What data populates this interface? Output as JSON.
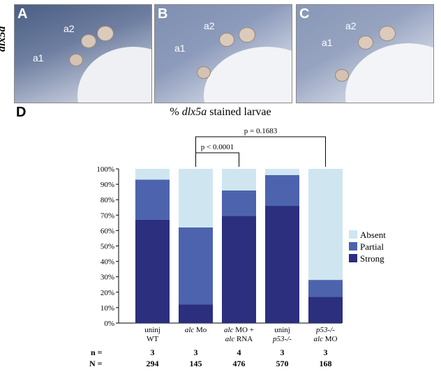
{
  "gene_label": "dlx5a",
  "panels": [
    {
      "letter": "A",
      "labels": [
        "a1",
        "a2"
      ]
    },
    {
      "letter": "B",
      "labels": [
        "a1",
        "a2"
      ]
    },
    {
      "letter": "C",
      "labels": [
        "a1",
        "a2"
      ]
    }
  ],
  "panel_d_letter": "D",
  "chart_title": {
    "pre": "% ",
    "gene": "dlx5a",
    "post": " stained larvae"
  },
  "chart_data": {
    "type": "bar",
    "stacked": true,
    "categories": [
      [
        "uninj",
        "WT"
      ],
      [
        "alc Mo"
      ],
      [
        "alc MO +",
        "alc RNA"
      ],
      [
        "uninj",
        "p53-/-"
      ],
      [
        "p53-/-",
        "alc MO"
      ]
    ],
    "series": [
      {
        "name": "Strong",
        "color": "#2b2f7e",
        "values": [
          67,
          12,
          69.5,
          76,
          17
        ]
      },
      {
        "name": "Partial",
        "color": "#4d63ad",
        "values": [
          26,
          50,
          16.5,
          20,
          11
        ]
      },
      {
        "name": "Absent",
        "color": "#cfe6f1",
        "values": [
          7,
          38,
          14,
          4,
          72
        ]
      }
    ],
    "y_ticks": [
      "0%",
      "10%",
      "20%",
      "30%",
      "40%",
      "50%",
      "60%",
      "70%",
      "80%",
      "90%",
      "100%"
    ],
    "ylim": [
      0,
      100
    ],
    "legend_position": "right",
    "brackets": [
      {
        "label": "p < 0.0001",
        "from": 1,
        "to": 2
      },
      {
        "label": "p = 0.1683",
        "from": 1,
        "to": 4
      }
    ],
    "n_label": "n =",
    "n_values": [
      "3",
      "3",
      "4",
      "3",
      "3"
    ],
    "N_label": "N =",
    "N_values": [
      "294",
      "145",
      "476",
      "570",
      "168"
    ]
  }
}
